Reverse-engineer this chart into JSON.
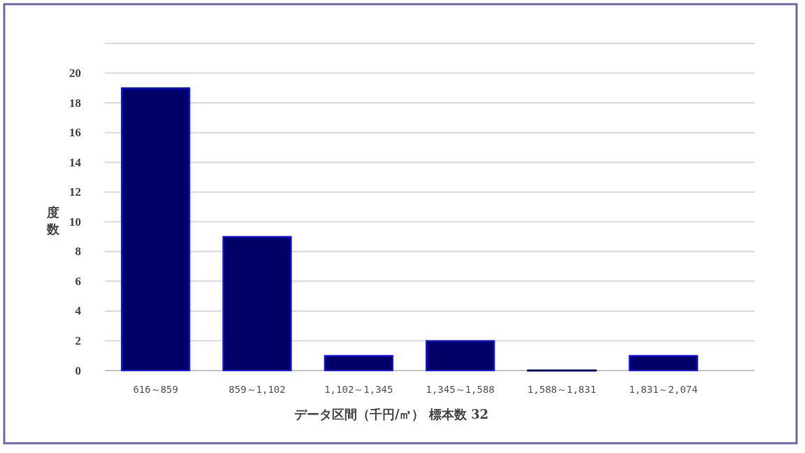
{
  "chart_data": {
    "type": "bar",
    "categories": [
      "616～859",
      "859～1,102",
      "1,102～1,345",
      "1,345～1,588",
      "1,588～1,831",
      "1,831～2,074"
    ],
    "values": [
      19,
      9,
      1,
      2,
      0,
      1
    ],
    "color": "#000066",
    "xlabel": "データ区間（千円/㎡） 標本数 32",
    "ylabel": "度数",
    "ylim": [
      0,
      22
    ],
    "yticks": [
      0,
      2,
      4,
      6,
      8,
      10,
      12,
      14,
      16,
      18,
      20,
      {
        "value": 22,
        "label": null
      }
    ],
    "grid": "y"
  }
}
